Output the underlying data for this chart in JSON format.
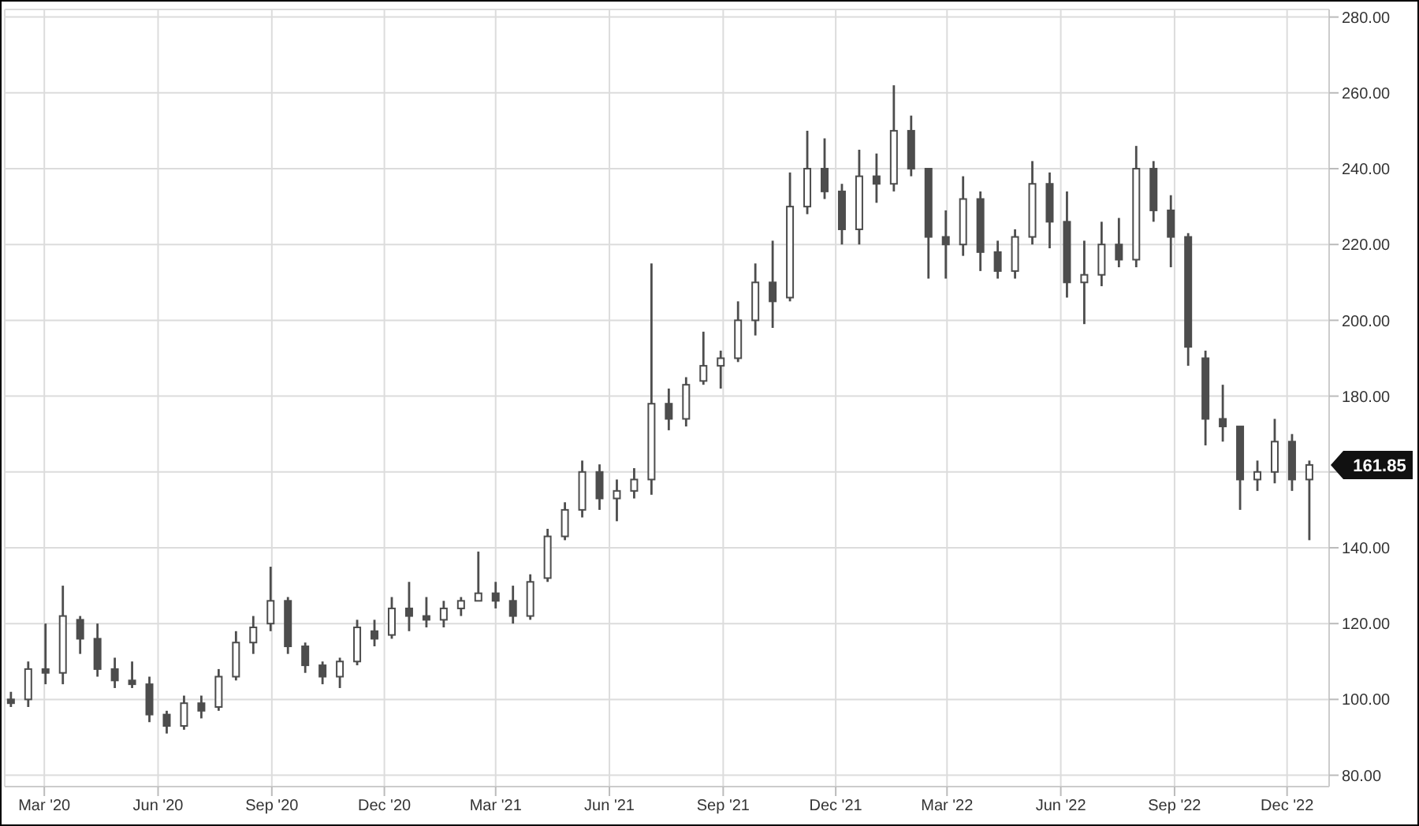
{
  "chart_data": {
    "type": "candlestick",
    "x": [
      "2020-02-03",
      "2020-02-17",
      "2020-03-02",
      "2020-03-16",
      "2020-03-30",
      "2020-04-13",
      "2020-04-27",
      "2020-05-11",
      "2020-05-25",
      "2020-06-08",
      "2020-06-22",
      "2020-07-06",
      "2020-07-20",
      "2020-08-03",
      "2020-08-17",
      "2020-08-31",
      "2020-09-14",
      "2020-09-28",
      "2020-10-12",
      "2020-10-26",
      "2020-11-09",
      "2020-11-23",
      "2020-12-07",
      "2020-12-21",
      "2021-01-04",
      "2021-01-18",
      "2021-02-01",
      "2021-02-15",
      "2021-03-01",
      "2021-03-15",
      "2021-03-29",
      "2021-04-12",
      "2021-04-26",
      "2021-05-10",
      "2021-05-24",
      "2021-06-07",
      "2021-06-21",
      "2021-07-05",
      "2021-07-19",
      "2021-08-02",
      "2021-08-16",
      "2021-08-30",
      "2021-09-13",
      "2021-09-27",
      "2021-10-11",
      "2021-10-25",
      "2021-11-08",
      "2021-11-22",
      "2021-12-06",
      "2021-12-20",
      "2022-01-03",
      "2022-01-17",
      "2022-01-31",
      "2022-02-14",
      "2022-02-28",
      "2022-03-14",
      "2022-03-28",
      "2022-04-11",
      "2022-04-25",
      "2022-05-09",
      "2022-05-23",
      "2022-06-06",
      "2022-06-20",
      "2022-07-04",
      "2022-07-18",
      "2022-08-01",
      "2022-08-15",
      "2022-08-29",
      "2022-09-12",
      "2022-09-26",
      "2022-10-10",
      "2022-10-24",
      "2022-11-07",
      "2022-11-21",
      "2022-12-05",
      "2022-12-19"
    ],
    "ohlc": [
      [
        100,
        102,
        98,
        99
      ],
      [
        100,
        110,
        98,
        108
      ],
      [
        108,
        120,
        104,
        107
      ],
      [
        107,
        130,
        104,
        122
      ],
      [
        121,
        122,
        112,
        116
      ],
      [
        116,
        120,
        106,
        108
      ],
      [
        108,
        111,
        103,
        105
      ],
      [
        105,
        110,
        103,
        104
      ],
      [
        104,
        106,
        94,
        96
      ],
      [
        96,
        97,
        91,
        93
      ],
      [
        93,
        101,
        92,
        99
      ],
      [
        99,
        101,
        95,
        97
      ],
      [
        98,
        108,
        97,
        106
      ],
      [
        106,
        118,
        105,
        115
      ],
      [
        115,
        122,
        112,
        119
      ],
      [
        120,
        135,
        118,
        126
      ],
      [
        126,
        127,
        112,
        114
      ],
      [
        114,
        115,
        107,
        109
      ],
      [
        109,
        110,
        104,
        106
      ],
      [
        106,
        111,
        103,
        110
      ],
      [
        110,
        121,
        109,
        119
      ],
      [
        118,
        121,
        114,
        116
      ],
      [
        117,
        127,
        116,
        124
      ],
      [
        124,
        131,
        118,
        122
      ],
      [
        122,
        127,
        119,
        121
      ],
      [
        121,
        126,
        119,
        124
      ],
      [
        124,
        127,
        122,
        126
      ],
      [
        126,
        139,
        126,
        128
      ],
      [
        128,
        131,
        124,
        126
      ],
      [
        126,
        130,
        120,
        122
      ],
      [
        122,
        133,
        121,
        131
      ],
      [
        132,
        145,
        131,
        143
      ],
      [
        143,
        152,
        142,
        150
      ],
      [
        150,
        163,
        148,
        160
      ],
      [
        160,
        162,
        150,
        153
      ],
      [
        153,
        158,
        147,
        155
      ],
      [
        155,
        161,
        153,
        158
      ],
      [
        158,
        215,
        154,
        178
      ],
      [
        178,
        182,
        171,
        174
      ],
      [
        174,
        185,
        172,
        183
      ],
      [
        184,
        197,
        183,
        188
      ],
      [
        188,
        192,
        182,
        190
      ],
      [
        190,
        205,
        189,
        200
      ],
      [
        200,
        215,
        196,
        210
      ],
      [
        210,
        221,
        198,
        205
      ],
      [
        206,
        239,
        205,
        230
      ],
      [
        230,
        250,
        228,
        240
      ],
      [
        240,
        248,
        232,
        234
      ],
      [
        234,
        236,
        220,
        224
      ],
      [
        224,
        245,
        220,
        238
      ],
      [
        238,
        244,
        231,
        236
      ],
      [
        236,
        262,
        234,
        250
      ],
      [
        250,
        254,
        238,
        240
      ],
      [
        240,
        240,
        211,
        222
      ],
      [
        222,
        229,
        211,
        220
      ],
      [
        220,
        238,
        217,
        232
      ],
      [
        232,
        234,
        213,
        218
      ],
      [
        218,
        221,
        211,
        213
      ],
      [
        213,
        224,
        211,
        222
      ],
      [
        222,
        242,
        220,
        236
      ],
      [
        236,
        239,
        219,
        226
      ],
      [
        226,
        234,
        206,
        210
      ],
      [
        210,
        221,
        199,
        212
      ],
      [
        212,
        226,
        209,
        220
      ],
      [
        220,
        227,
        214,
        216
      ],
      [
        216,
        246,
        214,
        240
      ],
      [
        240,
        242,
        226,
        229
      ],
      [
        229,
        233,
        214,
        222
      ],
      [
        222,
        223,
        188,
        193
      ],
      [
        190,
        192,
        167,
        174
      ],
      [
        174,
        183,
        168,
        172
      ],
      [
        172,
        172,
        150,
        158
      ],
      [
        158,
        163,
        155,
        160
      ],
      [
        160,
        174,
        157,
        168
      ],
      [
        168,
        170,
        155,
        158
      ],
      [
        158,
        163,
        142,
        161.85
      ]
    ],
    "color": "#4d4d4d",
    "xlim": [
      "2020-01-29",
      "2023-01-04"
    ],
    "xticks": [
      {
        "value": "2020-03-01",
        "label": "Mar '20"
      },
      {
        "value": "2020-06-01",
        "label": "Jun '20"
      },
      {
        "value": "2020-09-01",
        "label": "Sep '20"
      },
      {
        "value": "2020-12-01",
        "label": "Dec '20"
      },
      {
        "value": "2021-03-01",
        "label": "Mar '21"
      },
      {
        "value": "2021-06-01",
        "label": "Jun '21"
      },
      {
        "value": "2021-09-01",
        "label": "Sep '21"
      },
      {
        "value": "2021-12-01",
        "label": "Dec '21"
      },
      {
        "value": "2022-03-01",
        "label": "Mar '22"
      },
      {
        "value": "2022-06-01",
        "label": "Jun '22"
      },
      {
        "value": "2022-09-01",
        "label": "Sep '22"
      },
      {
        "value": "2022-12-01",
        "label": "Dec '22"
      }
    ],
    "ylim": [
      77,
      282
    ],
    "yticks": [
      {
        "value": 80,
        "label": "80.00"
      },
      {
        "value": 100,
        "label": "100.00"
      },
      {
        "value": 120,
        "label": "120.00"
      },
      {
        "value": 140,
        "label": "140.00"
      },
      {
        "value": 160,
        "label": null
      },
      {
        "value": 180,
        "label": "180.00"
      },
      {
        "value": 200,
        "label": "200.00"
      },
      {
        "value": 220,
        "label": "220.00"
      },
      {
        "value": 240,
        "label": "240.00"
      },
      {
        "value": 260,
        "label": "260.00"
      },
      {
        "value": 280,
        "label": "280.00"
      }
    ],
    "grid": true,
    "annotations": [
      {
        "text": "161.85",
        "x": "2022-12-19",
        "y": 161.85
      }
    ]
  }
}
